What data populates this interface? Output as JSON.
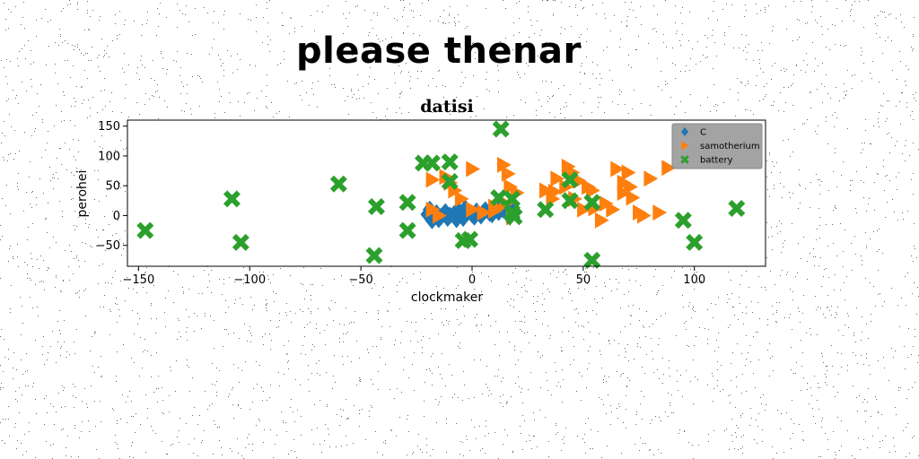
{
  "page": {
    "suptitle": "please thenar"
  },
  "colors": {
    "C": "#1f77b4",
    "samotherium": "#ff7f0e",
    "battery": "#2ca02c",
    "legend_bg": "#999999"
  },
  "chart_data": {
    "type": "scatter",
    "title": "datisi",
    "xlabel": "clockmaker",
    "ylabel": "perohei",
    "xlim": [
      -155,
      132
    ],
    "ylim": [
      -85,
      160
    ],
    "xticks": [
      -150,
      -100,
      -50,
      0,
      50,
      100
    ],
    "yticks": [
      150,
      100,
      50,
      0,
      -50
    ],
    "legend_position": "top-right",
    "series": [
      {
        "name": "C",
        "marker": "diamond",
        "color": "#1f77b4",
        "points": [
          [
            -20,
            2
          ],
          [
            -18,
            -8
          ],
          [
            -16,
            4
          ],
          [
            -14,
            -2
          ],
          [
            -12,
            6
          ],
          [
            -10,
            0
          ],
          [
            -8,
            3
          ],
          [
            -6,
            8
          ],
          [
            -4,
            -4
          ],
          [
            -2,
            5
          ],
          [
            0,
            2
          ],
          [
            2,
            7
          ],
          [
            4,
            0
          ],
          [
            6,
            9
          ],
          [
            8,
            4
          ],
          [
            10,
            11
          ],
          [
            12,
            6
          ],
          [
            14,
            10
          ],
          [
            16,
            3
          ],
          [
            18,
            8
          ],
          [
            -19,
            10
          ],
          [
            -15,
            -6
          ],
          [
            -11,
            -4
          ],
          [
            -7,
            -6
          ],
          [
            -3,
            12
          ],
          [
            1,
            -2
          ],
          [
            5,
            5
          ],
          [
            9,
            2
          ],
          [
            13,
            14
          ],
          [
            17,
            -2
          ]
        ]
      },
      {
        "name": "samotherium",
        "marker": "triangle-right",
        "color": "#ff7f0e",
        "points": [
          [
            -18,
            60
          ],
          [
            -12,
            65
          ],
          [
            -10,
            55
          ],
          [
            0,
            78
          ],
          [
            14,
            85
          ],
          [
            16,
            70
          ],
          [
            17,
            48
          ],
          [
            20,
            38
          ],
          [
            10,
            15
          ],
          [
            15,
            20
          ],
          [
            18,
            -3
          ],
          [
            -18,
            10
          ],
          [
            -15,
            0
          ],
          [
            -5,
            28
          ],
          [
            0,
            10
          ],
          [
            5,
            5
          ],
          [
            10,
            8
          ],
          [
            33,
            42
          ],
          [
            38,
            62
          ],
          [
            37,
            40
          ],
          [
            43,
            82
          ],
          [
            45,
            72
          ],
          [
            48,
            58
          ],
          [
            52,
            48
          ],
          [
            46,
            28
          ],
          [
            50,
            10
          ],
          [
            55,
            12
          ],
          [
            58,
            -8
          ],
          [
            60,
            20
          ],
          [
            63,
            10
          ],
          [
            65,
            78
          ],
          [
            68,
            55
          ],
          [
            70,
            72
          ],
          [
            71,
            48
          ],
          [
            72,
            30
          ],
          [
            68,
            38
          ],
          [
            75,
            5
          ],
          [
            77,
            0
          ],
          [
            80,
            62
          ],
          [
            84,
            5
          ],
          [
            88,
            80
          ],
          [
            54,
            42
          ],
          [
            42,
            48
          ],
          [
            36,
            28
          ],
          [
            -8,
            42
          ]
        ]
      },
      {
        "name": "battery",
        "marker": "x",
        "color": "#2ca02c",
        "points": [
          [
            -147,
            -25
          ],
          [
            -108,
            28
          ],
          [
            -104,
            -45
          ],
          [
            -60,
            53
          ],
          [
            -43,
            15
          ],
          [
            -44,
            -67
          ],
          [
            -29,
            22
          ],
          [
            -29,
            -25
          ],
          [
            -22,
            88
          ],
          [
            -18,
            88
          ],
          [
            -10,
            90
          ],
          [
            -10,
            57
          ],
          [
            -4,
            -42
          ],
          [
            -1,
            -40
          ],
          [
            13,
            145
          ],
          [
            12,
            30
          ],
          [
            18,
            28
          ],
          [
            18,
            5
          ],
          [
            19,
            -2
          ],
          [
            33,
            10
          ],
          [
            44,
            60
          ],
          [
            44,
            25
          ],
          [
            54,
            -75
          ],
          [
            54,
            22
          ],
          [
            95,
            -8
          ],
          [
            100,
            -45
          ],
          [
            119,
            12
          ]
        ]
      }
    ]
  }
}
